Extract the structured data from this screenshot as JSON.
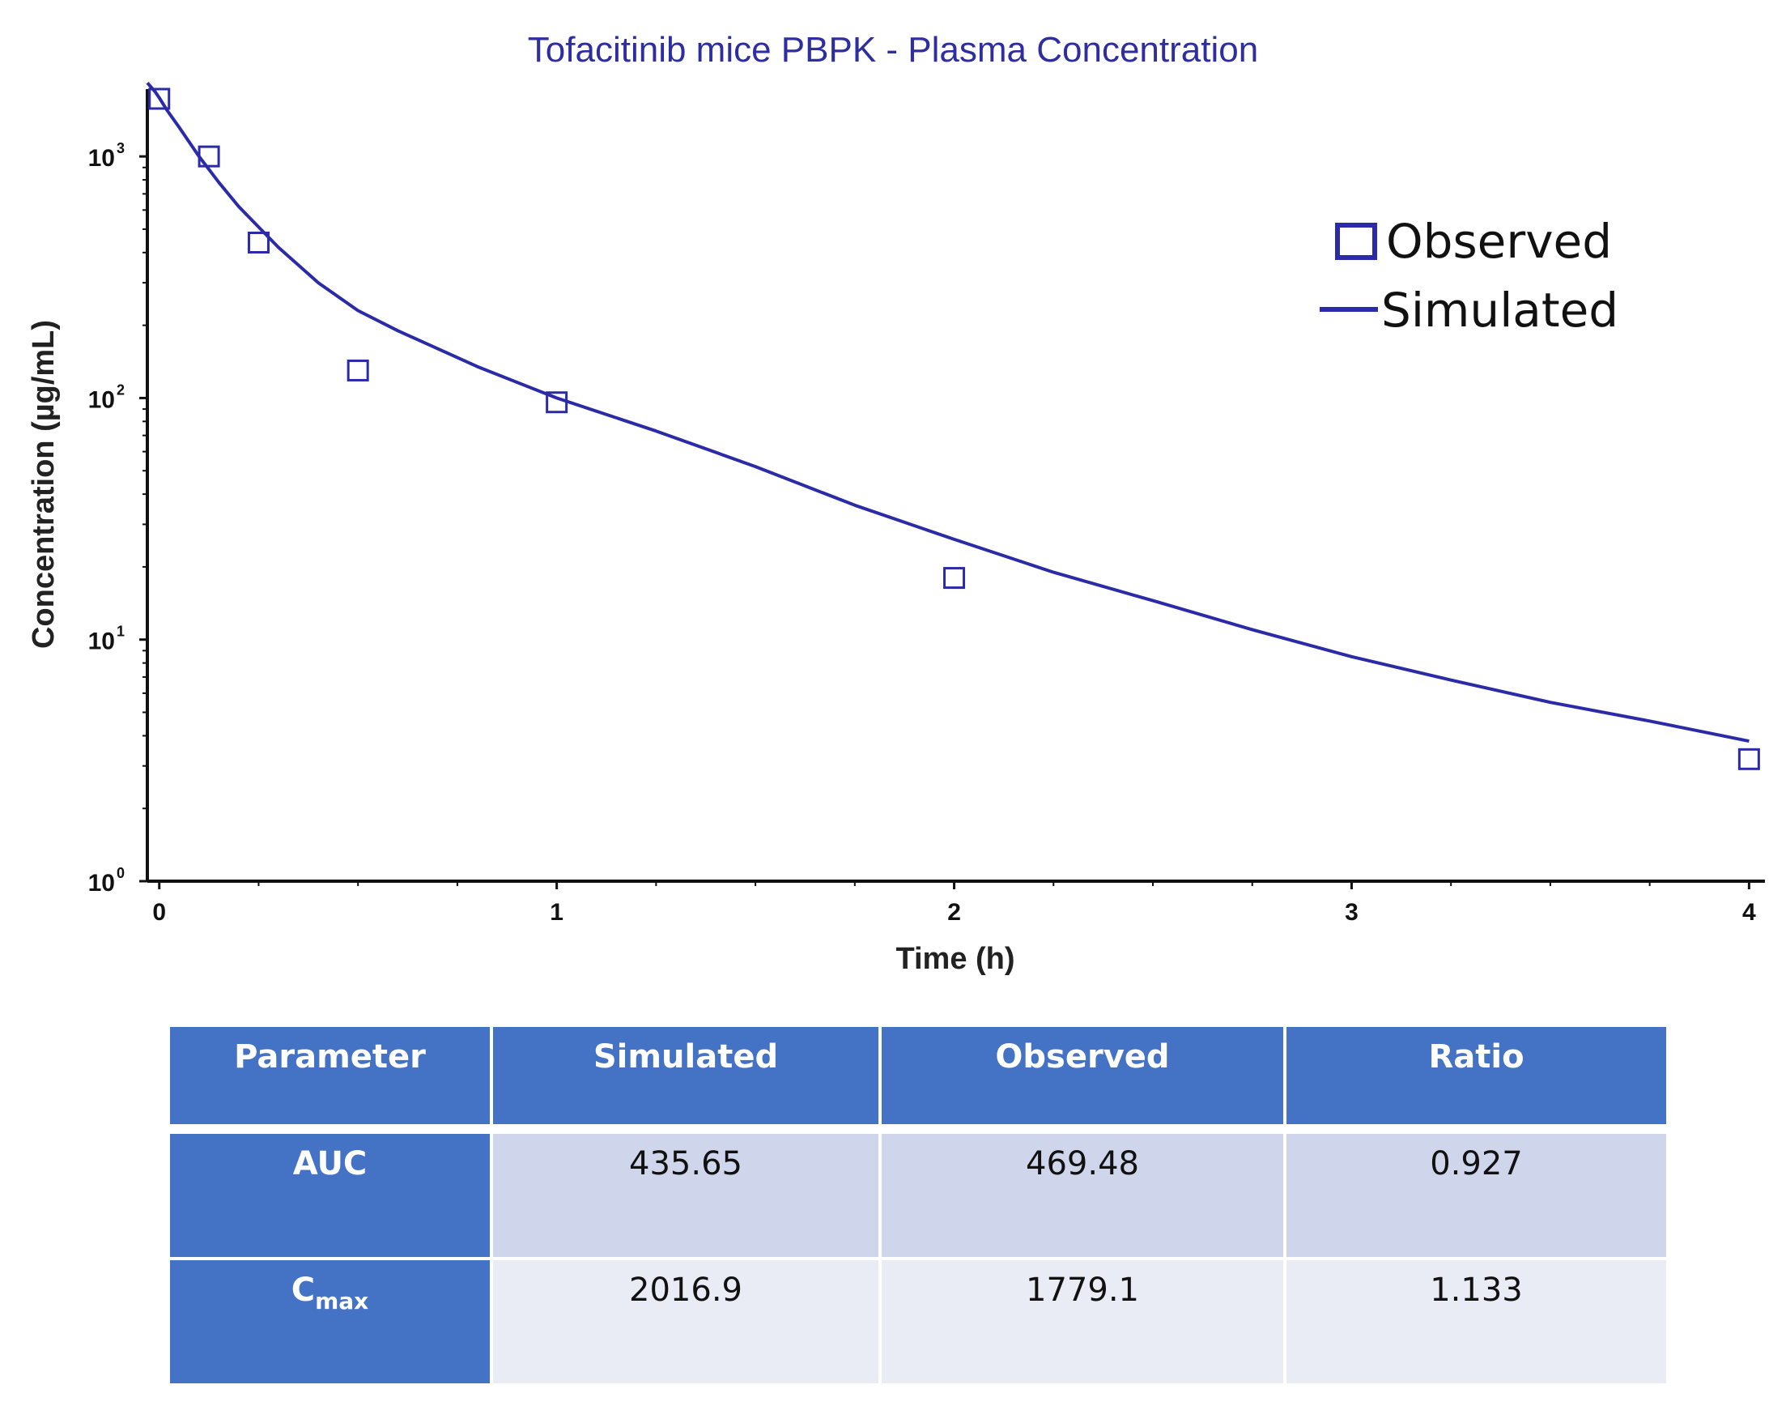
{
  "chart_data": {
    "type": "scatter",
    "title": "Tofacitinib mice PBPK - Plasma Concentration",
    "xlabel": "Time (h)",
    "ylabel": "Concentration (µg/mL)",
    "xlim": [
      -0.03,
      4.04
    ],
    "ylim": [
      1,
      1900
    ],
    "yscale": "log",
    "x_ticks": [
      0,
      1,
      2,
      3,
      4
    ],
    "y_ticks": [
      {
        "base": "10",
        "exp": "0"
      },
      {
        "base": "10",
        "exp": "1"
      },
      {
        "base": "10",
        "exp": "2"
      },
      {
        "base": "10",
        "exp": "3"
      }
    ],
    "legend_position": "top-right",
    "grid": false,
    "series": [
      {
        "name": "Observed",
        "kind": "marker",
        "x": [
          0.0,
          0.125,
          0.25,
          0.5,
          1.0,
          2.0,
          4.0
        ],
        "y": [
          1779.1,
          1000,
          440,
          130,
          96,
          18,
          3.2
        ]
      },
      {
        "name": "Simulated",
        "kind": "line",
        "x": [
          -0.03,
          -0.01,
          0.0,
          0.02,
          0.05,
          0.1,
          0.15,
          0.2,
          0.25,
          0.3,
          0.4,
          0.5,
          0.6,
          0.8,
          1.0,
          1.25,
          1.5,
          1.75,
          2.0,
          2.25,
          2.5,
          2.75,
          3.0,
          3.25,
          3.5,
          3.75,
          4.0
        ],
        "y": [
          2016.9,
          1850,
          1750,
          1550,
          1320,
          1000,
          780,
          620,
          510,
          420,
          300,
          230,
          190,
          135,
          100,
          73,
          52,
          36,
          26,
          19,
          14.5,
          11,
          8.5,
          6.8,
          5.5,
          4.6,
          3.8
        ]
      }
    ],
    "colors": {
      "series": "#2b2ba8",
      "axis": "#111111",
      "title": "#2e2ea0"
    }
  },
  "table": {
    "headers": [
      "Parameter",
      "Simulated",
      "Observed",
      "Ratio"
    ],
    "rows": [
      {
        "parameter": "AUC",
        "parameter_sub": "",
        "simulated": "435.65",
        "observed": "469.48",
        "ratio": "0.927"
      },
      {
        "parameter": "C",
        "parameter_sub": "max",
        "simulated": "2016.9",
        "observed": "1779.1",
        "ratio": "1.133"
      }
    ],
    "colors": {
      "header": "#4472c4",
      "row_odd": "#cfd5ea",
      "row_even": "#e9ebf5"
    }
  }
}
